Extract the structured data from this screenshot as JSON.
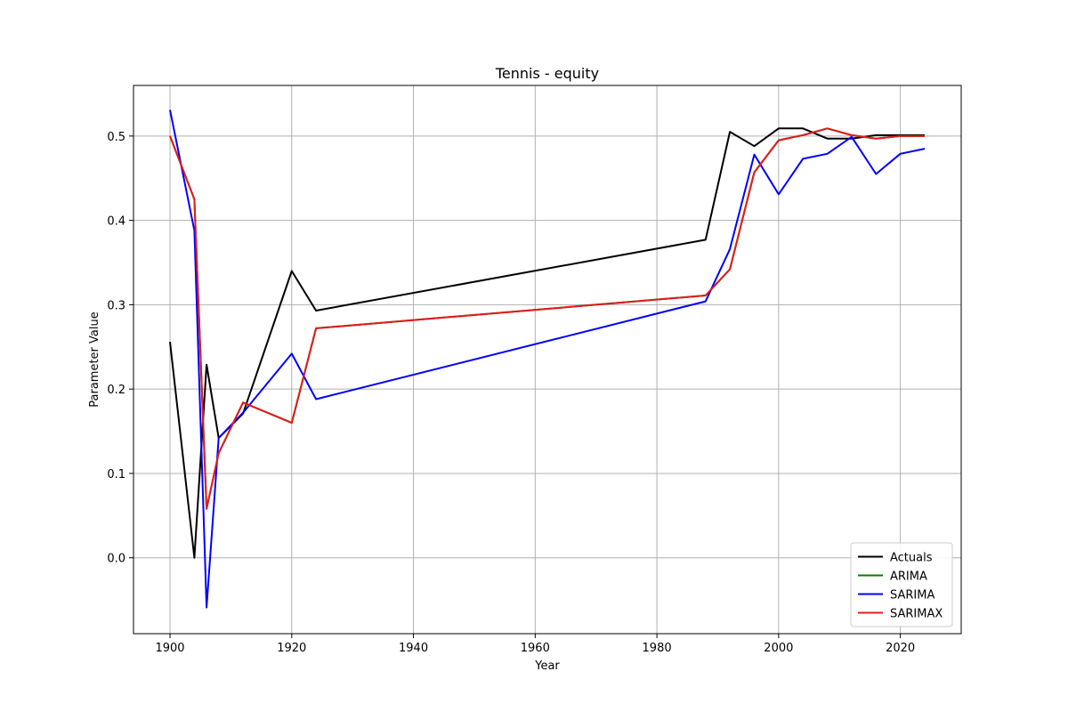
{
  "chart_data": {
    "type": "line",
    "title": "Tennis - equity",
    "xlabel": "Year",
    "ylabel": "Parameter Value",
    "xlim": [
      1894,
      2030
    ],
    "ylim": [
      -0.09,
      0.56
    ],
    "xticks": [
      1900,
      1920,
      1940,
      1960,
      1980,
      2000,
      2020
    ],
    "yticks": [
      0.0,
      0.1,
      0.2,
      0.3,
      0.4,
      0.5
    ],
    "xtick_labels": [
      "1900",
      "1920",
      "1940",
      "1960",
      "1980",
      "2000",
      "2020"
    ],
    "ytick_labels": [
      "0.0",
      "0.1",
      "0.2",
      "0.3",
      "0.4",
      "0.5"
    ],
    "grid": true,
    "legend_position": "lower-right",
    "x": [
      1900,
      1904,
      1906,
      1908,
      1912,
      1920,
      1924,
      1988,
      1992,
      1996,
      2000,
      2004,
      2008,
      2012,
      2016,
      2020,
      2024
    ],
    "series": [
      {
        "name": "Actuals",
        "color": "#000000",
        "values": [
          0.256,
          0.0,
          0.229,
          0.142,
          0.171,
          0.34,
          0.293,
          0.377,
          0.505,
          0.488,
          0.509,
          0.509,
          0.497,
          0.497,
          0.501,
          0.501,
          0.501
        ]
      },
      {
        "name": "ARIMA",
        "color": "#008000",
        "values": [
          0.5,
          0.425,
          0.058,
          0.124,
          0.184,
          0.16,
          0.272,
          0.311,
          0.342,
          0.457,
          0.495,
          0.501,
          0.509,
          0.501,
          0.497,
          0.5,
          0.5
        ]
      },
      {
        "name": "SARIMA",
        "color": "#0000ff",
        "values": [
          0.531,
          0.388,
          -0.059,
          0.142,
          0.172,
          0.242,
          0.188,
          0.304,
          0.366,
          0.478,
          0.431,
          0.473,
          0.479,
          0.499,
          0.455,
          0.479,
          0.485
        ]
      },
      {
        "name": "SARIMAX",
        "color": "#e41a1c",
        "values": [
          0.5,
          0.425,
          0.058,
          0.124,
          0.184,
          0.16,
          0.272,
          0.311,
          0.342,
          0.457,
          0.495,
          0.501,
          0.509,
          0.501,
          0.497,
          0.5,
          0.5
        ]
      }
    ]
  }
}
